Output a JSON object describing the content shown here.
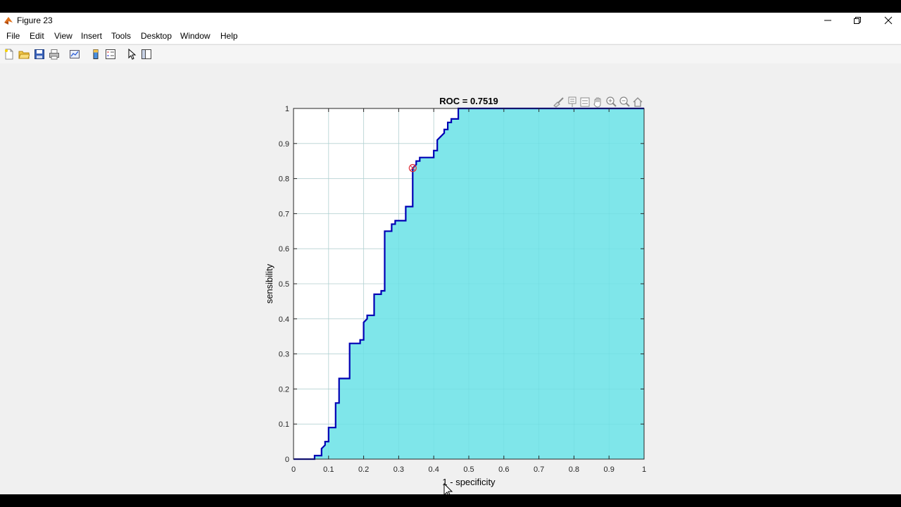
{
  "window": {
    "title": "Figure 23",
    "minimize_icon": "minimize-icon",
    "maximize_icon": "restore-icon",
    "close_icon": "close-icon"
  },
  "menu": [
    "File",
    "Edit",
    "View",
    "Insert",
    "Tools",
    "Desktop",
    "Window",
    "Help"
  ],
  "toolbar": {
    "icons": [
      "new-figure-icon",
      "open-file-icon",
      "save-icon",
      "print-icon",
      "link-plot-icon",
      "insert-colorbar-icon",
      "insert-legend-icon",
      "edit-plot-icon",
      "show-plot-tools-icon"
    ]
  },
  "axes_toolbar": {
    "icons": [
      "brush-icon",
      "data-tips-icon",
      "rotate-icon",
      "pan-icon",
      "zoom-in-icon",
      "zoom-out-icon",
      "home-icon"
    ]
  },
  "colors": {
    "fill": "#7fe6ea",
    "curve": "#0000b4",
    "marker": "#e0303a",
    "grid": "#dcdcdc"
  },
  "chart_data": {
    "type": "area",
    "title": "ROC = 0.7519",
    "xlabel": "1 - specificity",
    "ylabel": "sensibility",
    "xlim": [
      0,
      1
    ],
    "ylim": [
      0,
      1
    ],
    "xticks": [
      "0",
      "0.1",
      "0.2",
      "0.3",
      "0.4",
      "0.5",
      "0.6",
      "0.7",
      "0.8",
      "0.9",
      "1"
    ],
    "yticks": [
      "0",
      "0.1",
      "0.2",
      "0.3",
      "0.4",
      "0.5",
      "0.6",
      "0.7",
      "0.8",
      "0.9",
      "1"
    ],
    "grid": true,
    "x": [
      0,
      0.06,
      0.06,
      0.08,
      0.08,
      0.09,
      0.09,
      0.1,
      0.1,
      0.12,
      0.12,
      0.13,
      0.13,
      0.16,
      0.16,
      0.19,
      0.19,
      0.2,
      0.2,
      0.21,
      0.21,
      0.23,
      0.23,
      0.25,
      0.25,
      0.26,
      0.26,
      0.28,
      0.28,
      0.29,
      0.29,
      0.32,
      0.32,
      0.34,
      0.34,
      0.35,
      0.35,
      0.36,
      0.36,
      0.4,
      0.4,
      0.41,
      0.41,
      0.42,
      0.42,
      0.43,
      0.43,
      0.44,
      0.44,
      0.45,
      0.45,
      0.47,
      0.47,
      1
    ],
    "y": [
      0,
      0,
      0.01,
      0.01,
      0.03,
      0.04,
      0.05,
      0.05,
      0.09,
      0.09,
      0.16,
      0.16,
      0.23,
      0.23,
      0.33,
      0.33,
      0.34,
      0.34,
      0.39,
      0.4,
      0.41,
      0.41,
      0.47,
      0.47,
      0.48,
      0.48,
      0.65,
      0.65,
      0.67,
      0.67,
      0.68,
      0.68,
      0.72,
      0.72,
      0.83,
      0.84,
      0.85,
      0.85,
      0.86,
      0.86,
      0.88,
      0.88,
      0.91,
      0.92,
      0.92,
      0.93,
      0.94,
      0.94,
      0.96,
      0.96,
      0.97,
      0.97,
      1,
      1
    ],
    "marker": {
      "x": 0.34,
      "y": 0.83
    }
  }
}
